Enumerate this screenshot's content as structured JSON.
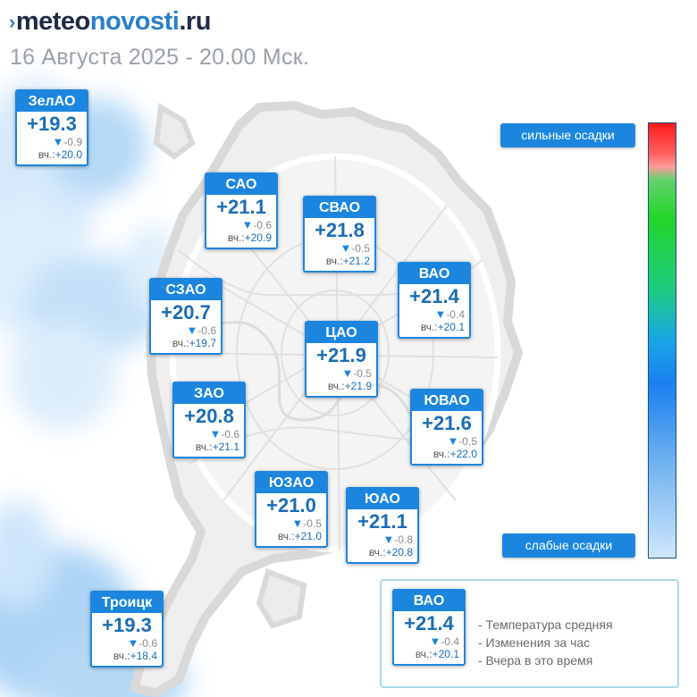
{
  "header": {
    "logo_prefix": "meteo",
    "logo_accent": "novosti",
    "logo_suffix": ".ru",
    "logo_mark": "›",
    "subtitle": "16 Августа 2025 - 20.00 Мск."
  },
  "districts": [
    {
      "name": "ЗелАО",
      "temp": "+19.3",
      "delta": "-0.9",
      "yest_label": "вч.:",
      "yest": "+20.0"
    },
    {
      "name": "САО",
      "temp": "+21.1",
      "delta": "-0.6",
      "yest_label": "вч.:",
      "yest": "+20.9"
    },
    {
      "name": "СВАО",
      "temp": "+21.8",
      "delta": "-0.5",
      "yest_label": "вч.:",
      "yest": "+21.2"
    },
    {
      "name": "ВАО",
      "temp": "+21.4",
      "delta": "-0.4",
      "yest_label": "вч.:",
      "yest": "+20.1"
    },
    {
      "name": "СЗАО",
      "temp": "+20.7",
      "delta": "-0.6",
      "yest_label": "вч.:",
      "yest": "+19.7"
    },
    {
      "name": "ЦАО",
      "temp": "+21.9",
      "delta": "-0.5",
      "yest_label": "вч.:",
      "yest": "+21.9"
    },
    {
      "name": "ЗАО",
      "temp": "+20.8",
      "delta": "-0.6",
      "yest_label": "вч.:",
      "yest": "+21.1"
    },
    {
      "name": "ЮВАО",
      "temp": "+21.6",
      "delta": "-0.5",
      "yest_label": "вч.:",
      "yest": "+22.0"
    },
    {
      "name": "ЮЗАО",
      "temp": "+21.0",
      "delta": "-0.5",
      "yest_label": "вч.:",
      "yest": "+21.0"
    },
    {
      "name": "ЮАО",
      "temp": "+21.1",
      "delta": "-0.8",
      "yest_label": "вч.:",
      "yest": "+20.8"
    },
    {
      "name": "Троицк",
      "temp": "+19.3",
      "delta": "-0.6",
      "yest_label": "вч.:",
      "yest": "+18.4"
    }
  ],
  "precip_scale": {
    "top_label": "сильные осадки",
    "bottom_label": "слабые осадки"
  },
  "legend": {
    "sample": {
      "name": "ВАО",
      "temp": "+21.4",
      "delta": "-0.4",
      "yest_label": "вч.:",
      "yest": "+20.1"
    },
    "lines": [
      "- Температура средняя",
      "- Изменения за час",
      "- Вчера в это время"
    ]
  },
  "icons": {
    "delta_marker": "triangle-down-icon"
  },
  "colors": {
    "accent": "#1c86df",
    "temp_text": "#1a6db5",
    "precip_light": "#8fc8f3"
  }
}
